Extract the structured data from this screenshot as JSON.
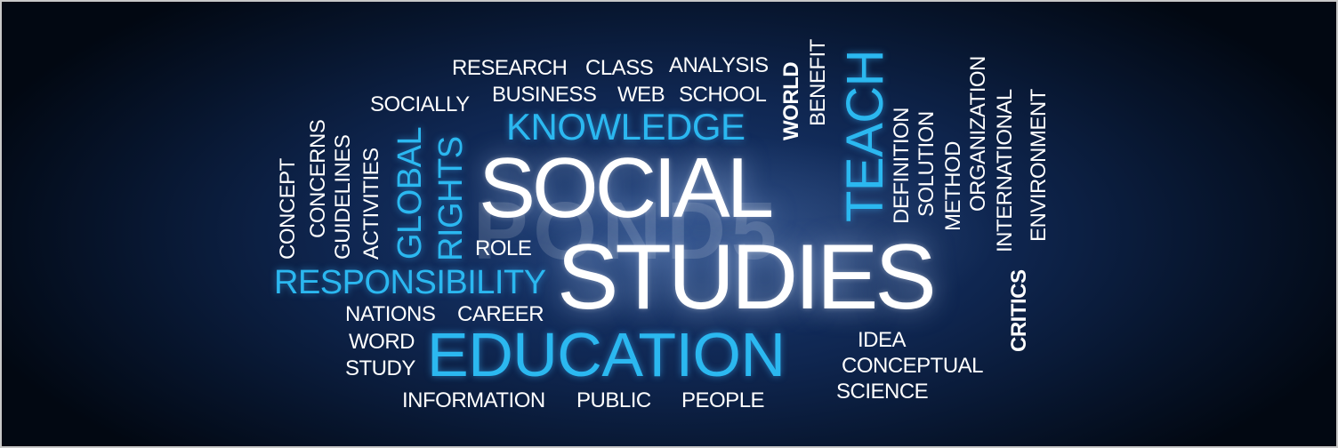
{
  "words": {
    "research": "RESEARCH",
    "class": "CLASS",
    "analysis": "ANALYSIS",
    "world": "WORLD",
    "benefit": "BENEFIT",
    "teach": "TEACH",
    "organization": "ORGANIZATION",
    "socially": "SOCIALLY",
    "business": "BUSINESS",
    "web": "WEB",
    "school": "SCHOOL",
    "knowledge": "KNOWLEDGE",
    "concerns": "CONCERNS",
    "concept": "CONCEPT",
    "guidelines": "GUIDELINES",
    "activities": "ACTIVITIES",
    "global": "GLOBAL",
    "rights": "RIGHTS",
    "social": "SOCIAL",
    "studies": "STUDIES",
    "definition": "DEFINITION",
    "solution": "SOLUTION",
    "method": "METHOD",
    "international": "INTERNATIONAL",
    "environment": "ENVIRONMENT",
    "role": "ROLE",
    "responsibility": "RESPONSIBILITY",
    "nations": "NATIONS",
    "career": "CAREER",
    "word": "WORD",
    "study": "STUDY",
    "education": "EDUCATION",
    "idea": "IDEA",
    "conceptual": "CONCEPTUAL",
    "science": "SCIENCE",
    "critics": "CRITICS",
    "information": "INFORMATION",
    "public": "PUBLIC",
    "people": "PEOPLE"
  },
  "watermark": "POND5",
  "colors": {
    "background": "#0f2650",
    "accent_blue": "#2bb8f0",
    "text_white": "#ffffff"
  }
}
